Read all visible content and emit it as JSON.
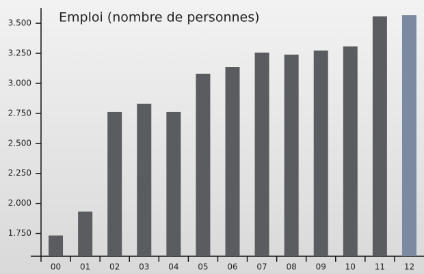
{
  "chart_data": {
    "type": "bar",
    "title": "Emploi (nombre de personnes)",
    "categories": [
      "00",
      "01",
      "02",
      "03",
      "04",
      "05",
      "06",
      "07",
      "08",
      "09",
      "10",
      "11",
      "12"
    ],
    "values": [
      1733,
      1932,
      2761,
      2830,
      2761,
      3080,
      3136,
      3256,
      3239,
      3273,
      3307,
      3557,
      3568
    ],
    "colors": [
      "#5b5c5f",
      "#5b5c5f",
      "#5b5c5f",
      "#5b5c5f",
      "#5b5c5f",
      "#5b5c5f",
      "#5b5c5f",
      "#5b5c5f",
      "#5b5c5f",
      "#5b5c5f",
      "#5b5c5f",
      "#5b5c5f",
      "#7b8aa0"
    ],
    "ylim": [
      1560,
      3580
    ],
    "yticks": [
      {
        "value": 1750,
        "label": "1.750"
      },
      {
        "value": 2000,
        "label": "2.000"
      },
      {
        "value": 2250,
        "label": "2.250"
      },
      {
        "value": 2500,
        "label": "2.500"
      },
      {
        "value": 2750,
        "label": "2.750"
      },
      {
        "value": 3000,
        "label": "3.000"
      },
      {
        "value": 3250,
        "label": "3.250"
      },
      {
        "value": 3500,
        "label": "3.500"
      }
    ],
    "grid": false
  }
}
